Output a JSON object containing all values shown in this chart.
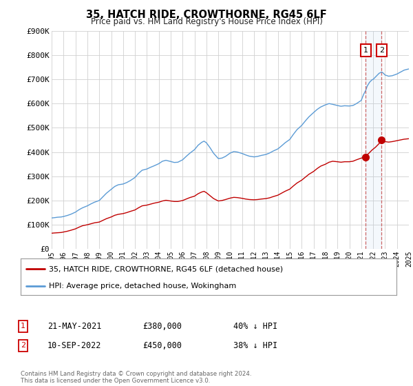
{
  "title": "35, HATCH RIDE, CROWTHORNE, RG45 6LF",
  "subtitle": "Price paid vs. HM Land Registry's House Price Index (HPI)",
  "ylim": [
    0,
    900000
  ],
  "xlim": [
    1995,
    2025
  ],
  "yticks": [
    0,
    100000,
    200000,
    300000,
    400000,
    500000,
    600000,
    700000,
    800000,
    900000
  ],
  "ytick_labels": [
    "£0",
    "£100K",
    "£200K",
    "£300K",
    "£400K",
    "£500K",
    "£600K",
    "£700K",
    "£800K",
    "£900K"
  ],
  "xticks": [
    1995,
    1996,
    1997,
    1998,
    1999,
    2000,
    2001,
    2002,
    2003,
    2004,
    2005,
    2006,
    2007,
    2008,
    2009,
    2010,
    2011,
    2012,
    2013,
    2014,
    2015,
    2016,
    2017,
    2018,
    2019,
    2020,
    2021,
    2022,
    2023,
    2024,
    2025
  ],
  "hpi_color": "#5b9bd5",
  "sale_color": "#c00000",
  "background_color": "#ffffff",
  "grid_color": "#d0d0d0",
  "sale1_date": 2021.38,
  "sale1_price": 380000,
  "sale2_date": 2022.71,
  "sale2_price": 450000,
  "legend_entries": [
    "35, HATCH RIDE, CROWTHORNE, RG45 6LF (detached house)",
    "HPI: Average price, detached house, Wokingham"
  ],
  "footer": "Contains HM Land Registry data © Crown copyright and database right 2024.\nThis data is licensed under the Open Government Licence v3.0.",
  "hpi_data": [
    [
      1995.0,
      128000
    ],
    [
      1995.2,
      129000
    ],
    [
      1995.5,
      131000
    ],
    [
      1995.8,
      132000
    ],
    [
      1996.0,
      134000
    ],
    [
      1996.3,
      138000
    ],
    [
      1996.6,
      143000
    ],
    [
      1997.0,
      152000
    ],
    [
      1997.3,
      162000
    ],
    [
      1997.6,
      170000
    ],
    [
      1998.0,
      178000
    ],
    [
      1998.3,
      186000
    ],
    [
      1998.6,
      193000
    ],
    [
      1999.0,
      200000
    ],
    [
      1999.3,
      215000
    ],
    [
      1999.6,
      230000
    ],
    [
      2000.0,
      246000
    ],
    [
      2000.3,
      258000
    ],
    [
      2000.6,
      265000
    ],
    [
      2001.0,
      268000
    ],
    [
      2001.3,
      274000
    ],
    [
      2001.6,
      282000
    ],
    [
      2002.0,
      295000
    ],
    [
      2002.3,
      312000
    ],
    [
      2002.6,
      325000
    ],
    [
      2003.0,
      330000
    ],
    [
      2003.3,
      337000
    ],
    [
      2003.6,
      343000
    ],
    [
      2004.0,
      352000
    ],
    [
      2004.3,
      362000
    ],
    [
      2004.6,
      366000
    ],
    [
      2005.0,
      361000
    ],
    [
      2005.3,
      357000
    ],
    [
      2005.6,
      358000
    ],
    [
      2006.0,
      368000
    ],
    [
      2006.3,
      382000
    ],
    [
      2006.6,
      395000
    ],
    [
      2007.0,
      410000
    ],
    [
      2007.3,
      428000
    ],
    [
      2007.6,
      440000
    ],
    [
      2007.8,
      445000
    ],
    [
      2008.0,
      438000
    ],
    [
      2008.3,
      418000
    ],
    [
      2008.6,
      395000
    ],
    [
      2009.0,
      373000
    ],
    [
      2009.3,
      375000
    ],
    [
      2009.6,
      382000
    ],
    [
      2010.0,
      396000
    ],
    [
      2010.3,
      402000
    ],
    [
      2010.6,
      400000
    ],
    [
      2011.0,
      394000
    ],
    [
      2011.3,
      388000
    ],
    [
      2011.6,
      383000
    ],
    [
      2012.0,
      380000
    ],
    [
      2012.3,
      382000
    ],
    [
      2012.6,
      386000
    ],
    [
      2013.0,
      390000
    ],
    [
      2013.3,
      396000
    ],
    [
      2013.6,
      404000
    ],
    [
      2014.0,
      413000
    ],
    [
      2014.3,
      425000
    ],
    [
      2014.6,
      438000
    ],
    [
      2015.0,
      452000
    ],
    [
      2015.3,
      473000
    ],
    [
      2015.6,
      492000
    ],
    [
      2016.0,
      510000
    ],
    [
      2016.3,
      528000
    ],
    [
      2016.6,
      545000
    ],
    [
      2017.0,
      563000
    ],
    [
      2017.3,
      576000
    ],
    [
      2017.6,
      586000
    ],
    [
      2018.0,
      595000
    ],
    [
      2018.3,
      600000
    ],
    [
      2018.6,
      597000
    ],
    [
      2019.0,
      592000
    ],
    [
      2019.3,
      589000
    ],
    [
      2019.6,
      591000
    ],
    [
      2020.0,
      590000
    ],
    [
      2020.3,
      592000
    ],
    [
      2020.6,
      600000
    ],
    [
      2021.0,
      613000
    ],
    [
      2021.2,
      638000
    ],
    [
      2021.38,
      655000
    ],
    [
      2021.5,
      672000
    ],
    [
      2021.7,
      688000
    ],
    [
      2021.9,
      698000
    ],
    [
      2022.0,
      700000
    ],
    [
      2022.2,
      710000
    ],
    [
      2022.5,
      725000
    ],
    [
      2022.71,
      730000
    ],
    [
      2022.8,
      728000
    ],
    [
      2023.0,
      718000
    ],
    [
      2023.3,
      713000
    ],
    [
      2023.6,
      715000
    ],
    [
      2024.0,
      722000
    ],
    [
      2024.3,
      730000
    ],
    [
      2024.6,
      738000
    ],
    [
      2025.0,
      743000
    ]
  ],
  "sale_hpi_data": [
    [
      1995.0,
      65000
    ],
    [
      1995.2,
      66000
    ],
    [
      1995.5,
      67000
    ],
    [
      1995.8,
      68000
    ],
    [
      1996.0,
      70000
    ],
    [
      1996.3,
      73000
    ],
    [
      1996.6,
      77000
    ],
    [
      1997.0,
      83000
    ],
    [
      1997.3,
      90000
    ],
    [
      1997.6,
      96000
    ],
    [
      1998.0,
      100000
    ],
    [
      1998.3,
      104000
    ],
    [
      1998.6,
      108000
    ],
    [
      1999.0,
      111000
    ],
    [
      1999.3,
      118000
    ],
    [
      1999.6,
      125000
    ],
    [
      2000.0,
      132000
    ],
    [
      2000.3,
      139000
    ],
    [
      2000.6,
      143000
    ],
    [
      2001.0,
      146000
    ],
    [
      2001.3,
      150000
    ],
    [
      2001.6,
      155000
    ],
    [
      2002.0,
      161000
    ],
    [
      2002.3,
      170000
    ],
    [
      2002.6,
      178000
    ],
    [
      2003.0,
      181000
    ],
    [
      2003.3,
      185000
    ],
    [
      2003.6,
      189000
    ],
    [
      2004.0,
      193000
    ],
    [
      2004.3,
      198000
    ],
    [
      2004.6,
      201000
    ],
    [
      2005.0,
      198000
    ],
    [
      2005.3,
      196000
    ],
    [
      2005.6,
      196000
    ],
    [
      2006.0,
      200000
    ],
    [
      2006.3,
      206000
    ],
    [
      2006.6,
      212000
    ],
    [
      2007.0,
      218000
    ],
    [
      2007.3,
      228000
    ],
    [
      2007.6,
      235000
    ],
    [
      2007.8,
      238000
    ],
    [
      2008.0,
      232000
    ],
    [
      2008.3,
      220000
    ],
    [
      2008.6,
      208000
    ],
    [
      2009.0,
      198000
    ],
    [
      2009.3,
      200000
    ],
    [
      2009.6,
      204000
    ],
    [
      2010.0,
      210000
    ],
    [
      2010.3,
      213000
    ],
    [
      2010.6,
      212000
    ],
    [
      2011.0,
      209000
    ],
    [
      2011.3,
      206000
    ],
    [
      2011.6,
      204000
    ],
    [
      2012.0,
      203000
    ],
    [
      2012.3,
      204000
    ],
    [
      2012.6,
      206000
    ],
    [
      2013.0,
      208000
    ],
    [
      2013.3,
      211000
    ],
    [
      2013.6,
      216000
    ],
    [
      2014.0,
      222000
    ],
    [
      2014.3,
      230000
    ],
    [
      2014.6,
      238000
    ],
    [
      2015.0,
      247000
    ],
    [
      2015.3,
      260000
    ],
    [
      2015.6,
      272000
    ],
    [
      2016.0,
      284000
    ],
    [
      2016.3,
      296000
    ],
    [
      2016.6,
      308000
    ],
    [
      2017.0,
      320000
    ],
    [
      2017.3,
      332000
    ],
    [
      2017.6,
      342000
    ],
    [
      2018.0,
      350000
    ],
    [
      2018.3,
      358000
    ],
    [
      2018.6,
      362000
    ],
    [
      2019.0,
      360000
    ],
    [
      2019.3,
      358000
    ],
    [
      2019.6,
      360000
    ],
    [
      2020.0,
      360000
    ],
    [
      2020.3,
      362000
    ],
    [
      2020.6,
      368000
    ],
    [
      2021.0,
      375000
    ],
    [
      2021.2,
      377000
    ],
    [
      2021.38,
      380000
    ],
    [
      2021.5,
      388000
    ],
    [
      2021.7,
      398000
    ],
    [
      2021.9,
      408000
    ],
    [
      2022.0,
      412000
    ],
    [
      2022.2,
      420000
    ],
    [
      2022.5,
      435000
    ],
    [
      2022.71,
      450000
    ],
    [
      2022.8,
      448000
    ],
    [
      2023.0,
      443000
    ],
    [
      2023.3,
      441000
    ],
    [
      2023.6,
      443000
    ],
    [
      2024.0,
      447000
    ],
    [
      2024.3,
      450000
    ],
    [
      2024.6,
      453000
    ],
    [
      2025.0,
      455000
    ]
  ]
}
